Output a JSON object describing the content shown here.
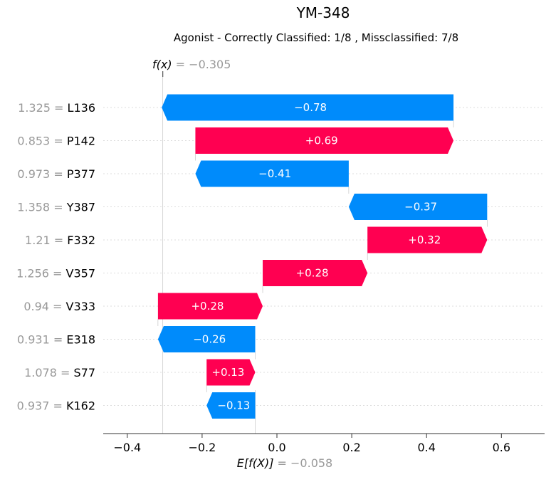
{
  "chart_data": {
    "type": "waterfall",
    "title": "YM-348",
    "subtitle": "Agonist - Correctly Classified: 1/8 , Missclassified: 7/8",
    "fx_label": "f(x)",
    "fx_value": "−0.305",
    "fx": -0.305,
    "ex_label": "E[f(X)]",
    "ex_value": "−0.058",
    "ex": -0.058,
    "xlim": [
      -0.46,
      0.71
    ],
    "xticks": [
      -0.4,
      -0.2,
      0.0,
      0.2,
      0.4,
      0.6
    ],
    "xtick_labels": [
      "−0.4",
      "−0.2",
      "0.0",
      "0.2",
      "0.4",
      "0.6"
    ],
    "features": [
      {
        "value": "1.325",
        "name": "L136",
        "contribution": -0.78,
        "label": "−0.78"
      },
      {
        "value": "0.853",
        "name": "P142",
        "contribution": 0.69,
        "label": "+0.69"
      },
      {
        "value": "0.973",
        "name": "P377",
        "contribution": -0.41,
        "label": "−0.41"
      },
      {
        "value": "1.358",
        "name": "Y387",
        "contribution": -0.37,
        "label": "−0.37"
      },
      {
        "value": "1.21",
        "name": "F332",
        "contribution": 0.32,
        "label": "+0.32"
      },
      {
        "value": "1.256",
        "name": "V357",
        "contribution": 0.28,
        "label": "+0.28"
      },
      {
        "value": "0.94",
        "name": "V333",
        "contribution": 0.28,
        "label": "+0.28"
      },
      {
        "value": "0.931",
        "name": "E318",
        "contribution": -0.26,
        "label": "−0.26"
      },
      {
        "value": "1.078",
        "name": "S77",
        "contribution": 0.13,
        "label": "+0.13"
      },
      {
        "value": "0.937",
        "name": "K162",
        "contribution": -0.13,
        "label": "−0.13"
      }
    ],
    "colors": {
      "positive": "#ff0051",
      "negative": "#008bfb",
      "label_grey": "#999999"
    }
  }
}
